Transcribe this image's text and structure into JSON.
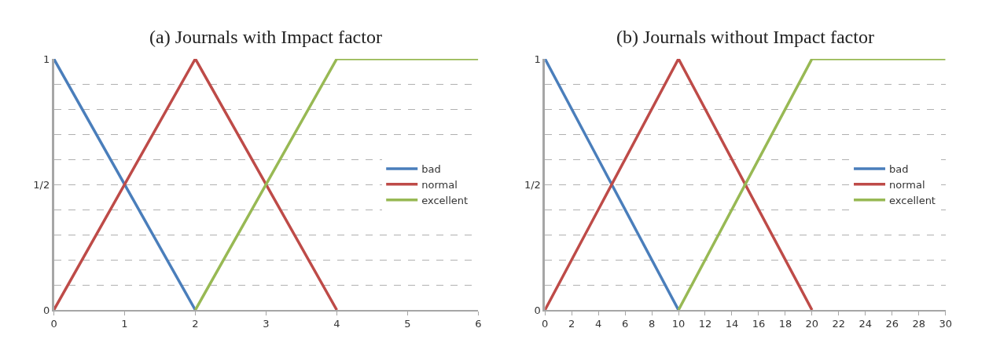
{
  "chart_data": [
    {
      "type": "line",
      "title": "(a) Journals with Impact factor",
      "xlim": [
        0,
        6
      ],
      "xticks": [
        0,
        1,
        2,
        3,
        4,
        5,
        6
      ],
      "ylim": [
        0,
        1
      ],
      "yticks": [
        0,
        {
          "value": 0.1,
          "label": null
        },
        {
          "value": 0.2,
          "label": null
        },
        {
          "value": 0.3,
          "label": null
        },
        {
          "value": 0.4,
          "label": null
        },
        {
          "value": 0.5,
          "label": "1/2"
        },
        {
          "value": 0.6,
          "label": null
        },
        {
          "value": 0.7,
          "label": null
        },
        {
          "value": 0.8,
          "label": null
        },
        {
          "value": 0.9,
          "label": null
        },
        1
      ],
      "grid": "y",
      "legend": "right",
      "line_style": "solid",
      "marker": "none",
      "series": [
        {
          "name": "bad",
          "color": "#4a7ebb",
          "x": [
            0,
            2
          ],
          "values": [
            1,
            0
          ]
        },
        {
          "name": "normal",
          "color": "#be4b48",
          "x": [
            0,
            2,
            4
          ],
          "values": [
            0,
            1,
            0
          ]
        },
        {
          "name": "excellent",
          "color": "#98b954",
          "x": [
            2,
            4,
            6
          ],
          "values": [
            0,
            1,
            1
          ]
        }
      ]
    },
    {
      "type": "line",
      "title": "(b) Journals without Impact factor",
      "xlim": [
        0,
        30
      ],
      "xticks": [
        0,
        2,
        4,
        6,
        8,
        10,
        12,
        14,
        16,
        18,
        20,
        22,
        24,
        26,
        28,
        30
      ],
      "ylim": [
        0,
        1
      ],
      "yticks": [
        0,
        {
          "value": 0.1,
          "label": null
        },
        {
          "value": 0.2,
          "label": null
        },
        {
          "value": 0.3,
          "label": null
        },
        {
          "value": 0.4,
          "label": null
        },
        {
          "value": 0.5,
          "label": "1/2"
        },
        {
          "value": 0.6,
          "label": null
        },
        {
          "value": 0.7,
          "label": null
        },
        {
          "value": 0.8,
          "label": null
        },
        {
          "value": 0.9,
          "label": null
        },
        1
      ],
      "grid": "y",
      "legend": "right",
      "line_style": "solid",
      "marker": "none",
      "series": [
        {
          "name": "bad",
          "color": "#4a7ebb",
          "x": [
            0,
            10
          ],
          "values": [
            1,
            0
          ]
        },
        {
          "name": "normal",
          "color": "#be4b48",
          "x": [
            0,
            10,
            20
          ],
          "values": [
            0,
            1,
            0
          ]
        },
        {
          "name": "excellent",
          "color": "#98b954",
          "x": [
            10,
            20,
            30
          ],
          "values": [
            0,
            1,
            1
          ]
        }
      ]
    }
  ]
}
